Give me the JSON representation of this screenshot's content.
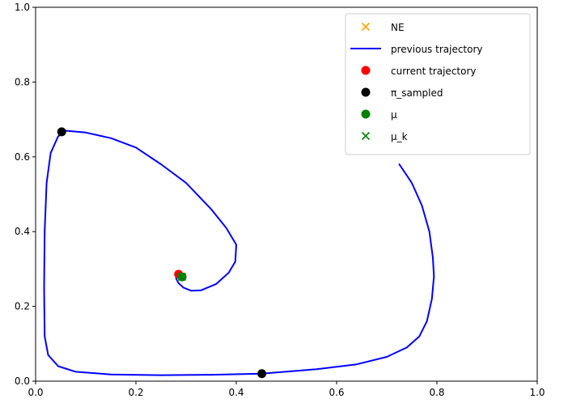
{
  "chart_data": {
    "type": "line",
    "title": "",
    "xlabel": "",
    "ylabel": "",
    "xlim": [
      0.0,
      1.0
    ],
    "ylim": [
      0.0,
      1.0
    ],
    "grid": false,
    "legend_position": "top-right",
    "x_ticks": [
      0.0,
      0.2,
      0.4,
      0.6,
      0.8,
      1.0
    ],
    "x_tick_labels": [
      "0.0",
      "0.2",
      "0.4",
      "0.6",
      "0.8",
      "1.0"
    ],
    "y_ticks": [
      0.0,
      0.2,
      0.4,
      0.6,
      0.8,
      1.0
    ],
    "y_tick_labels": [
      "0.0",
      "0.2",
      "0.4",
      "0.6",
      "0.8",
      "1.0"
    ],
    "series": [
      {
        "name": "NE",
        "kind": "marker-x",
        "color": "#ffa500",
        "points": [
          [
            0.29,
            0.28
          ]
        ]
      },
      {
        "name": "previous trajectory",
        "kind": "line",
        "color": "#0000ff",
        "points": [
          [
            0.725,
            0.58
          ],
          [
            0.75,
            0.53
          ],
          [
            0.77,
            0.47
          ],
          [
            0.785,
            0.4
          ],
          [
            0.792,
            0.33
          ],
          [
            0.794,
            0.28
          ],
          [
            0.79,
            0.22
          ],
          [
            0.78,
            0.16
          ],
          [
            0.765,
            0.12
          ],
          [
            0.74,
            0.09
          ],
          [
            0.7,
            0.065
          ],
          [
            0.64,
            0.045
          ],
          [
            0.56,
            0.032
          ],
          [
            0.45,
            0.02
          ],
          [
            0.35,
            0.017
          ],
          [
            0.25,
            0.016
          ],
          [
            0.15,
            0.018
          ],
          [
            0.08,
            0.025
          ],
          [
            0.045,
            0.04
          ],
          [
            0.025,
            0.07
          ],
          [
            0.018,
            0.12
          ],
          [
            0.017,
            0.25
          ],
          [
            0.018,
            0.4
          ],
          [
            0.022,
            0.53
          ],
          [
            0.03,
            0.61
          ],
          [
            0.045,
            0.655
          ],
          [
            0.06,
            0.67
          ],
          [
            0.1,
            0.665
          ],
          [
            0.15,
            0.65
          ],
          [
            0.2,
            0.625
          ],
          [
            0.25,
            0.58
          ],
          [
            0.3,
            0.53
          ],
          [
            0.35,
            0.46
          ],
          [
            0.38,
            0.41
          ],
          [
            0.4,
            0.365
          ],
          [
            0.398,
            0.32
          ],
          [
            0.385,
            0.29
          ],
          [
            0.36,
            0.26
          ],
          [
            0.33,
            0.243
          ],
          [
            0.31,
            0.242
          ],
          [
            0.295,
            0.25
          ],
          [
            0.285,
            0.262
          ],
          [
            0.28,
            0.275
          ],
          [
            0.285,
            0.283
          ],
          [
            0.29,
            0.285
          ]
        ]
      },
      {
        "name": "current trajectory",
        "kind": "marker-dot",
        "color": "#ff0000",
        "points": [
          [
            0.285,
            0.286
          ]
        ]
      },
      {
        "name": "π_sampled",
        "kind": "marker-dot",
        "color": "#000000",
        "points": [
          [
            0.052,
            0.667
          ],
          [
            0.451,
            0.02
          ]
        ]
      },
      {
        "name": "μ",
        "kind": "marker-dot",
        "color": "#008000",
        "points": [
          [
            0.292,
            0.279
          ]
        ]
      },
      {
        "name": "μ_k",
        "kind": "marker-x",
        "color": "#008000",
        "points": [
          [
            0.292,
            0.279
          ]
        ]
      }
    ]
  }
}
